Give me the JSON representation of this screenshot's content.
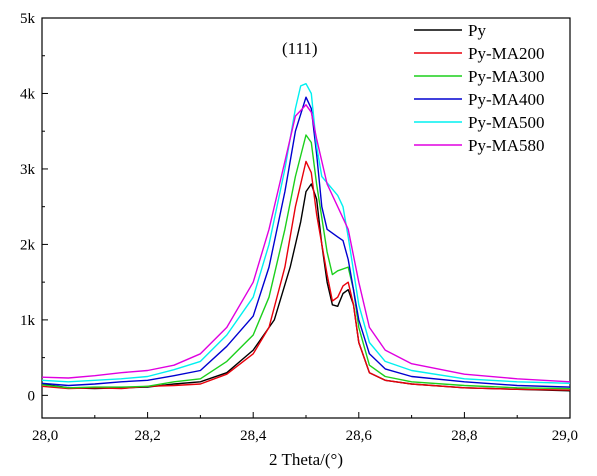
{
  "chart_data": {
    "type": "line",
    "title": "",
    "annotation": "(111)",
    "xlabel": "2 Theta/(°)",
    "ylabel": "",
    "xlim": [
      28.0,
      29.0
    ],
    "ylim": [
      -300,
      5000
    ],
    "x_ticks": [
      "28,0",
      "28,2",
      "28,4",
      "28,6",
      "28,8",
      "29,0"
    ],
    "y_ticks": [
      "0",
      "1k",
      "2k",
      "3k",
      "4k",
      "5k"
    ],
    "legend_position": "top-right",
    "grid": false,
    "series": [
      {
        "name": "Py",
        "color": "#000000",
        "points": [
          [
            28.0,
            150
          ],
          [
            28.05,
            100
          ],
          [
            28.1,
            90
          ],
          [
            28.15,
            100
          ],
          [
            28.2,
            110
          ],
          [
            28.25,
            150
          ],
          [
            28.3,
            180
          ],
          [
            28.35,
            300
          ],
          [
            28.4,
            600
          ],
          [
            28.44,
            1000
          ],
          [
            28.47,
            1700
          ],
          [
            28.49,
            2300
          ],
          [
            28.5,
            2700
          ],
          [
            28.51,
            2800
          ],
          [
            28.52,
            2600
          ],
          [
            28.53,
            2000
          ],
          [
            28.54,
            1500
          ],
          [
            28.55,
            1200
          ],
          [
            28.56,
            1180
          ],
          [
            28.57,
            1350
          ],
          [
            28.58,
            1400
          ],
          [
            28.59,
            1200
          ],
          [
            28.6,
            700
          ],
          [
            28.62,
            300
          ],
          [
            28.65,
            200
          ],
          [
            28.7,
            150
          ],
          [
            28.8,
            100
          ],
          [
            28.9,
            80
          ],
          [
            29.0,
            60
          ]
        ]
      },
      {
        "name": "Py-MA200",
        "color": "#e8000b",
        "points": [
          [
            28.0,
            120
          ],
          [
            28.05,
            90
          ],
          [
            28.1,
            100
          ],
          [
            28.15,
            90
          ],
          [
            28.2,
            120
          ],
          [
            28.25,
            130
          ],
          [
            28.3,
            150
          ],
          [
            28.35,
            280
          ],
          [
            28.4,
            550
          ],
          [
            28.43,
            900
          ],
          [
            28.46,
            1700
          ],
          [
            28.48,
            2500
          ],
          [
            28.5,
            3100
          ],
          [
            28.51,
            2950
          ],
          [
            28.52,
            2400
          ],
          [
            28.54,
            1600
          ],
          [
            28.55,
            1250
          ],
          [
            28.56,
            1300
          ],
          [
            28.57,
            1450
          ],
          [
            28.58,
            1500
          ],
          [
            28.59,
            1200
          ],
          [
            28.6,
            700
          ],
          [
            28.62,
            300
          ],
          [
            28.65,
            200
          ],
          [
            28.7,
            150
          ],
          [
            28.8,
            100
          ],
          [
            28.9,
            80
          ],
          [
            29.0,
            70
          ]
        ]
      },
      {
        "name": "Py-MA300",
        "color": "#1ccf1c",
        "points": [
          [
            28.0,
            140
          ],
          [
            28.05,
            100
          ],
          [
            28.1,
            110
          ],
          [
            28.15,
            110
          ],
          [
            28.2,
            120
          ],
          [
            28.25,
            180
          ],
          [
            28.3,
            220
          ],
          [
            28.35,
            450
          ],
          [
            28.4,
            800
          ],
          [
            28.43,
            1300
          ],
          [
            28.46,
            2200
          ],
          [
            28.48,
            2900
          ],
          [
            28.5,
            3450
          ],
          [
            28.51,
            3350
          ],
          [
            28.52,
            2800
          ],
          [
            28.54,
            1900
          ],
          [
            28.55,
            1600
          ],
          [
            28.56,
            1650
          ],
          [
            28.58,
            1700
          ],
          [
            28.59,
            1400
          ],
          [
            28.6,
            900
          ],
          [
            28.62,
            400
          ],
          [
            28.65,
            250
          ],
          [
            28.7,
            180
          ],
          [
            28.8,
            130
          ],
          [
            28.9,
            100
          ],
          [
            29.0,
            90
          ]
        ]
      },
      {
        "name": "Py-MA400",
        "color": "#0000d0",
        "points": [
          [
            28.0,
            160
          ],
          [
            28.05,
            130
          ],
          [
            28.1,
            150
          ],
          [
            28.15,
            180
          ],
          [
            28.2,
            200
          ],
          [
            28.25,
            260
          ],
          [
            28.3,
            330
          ],
          [
            28.35,
            650
          ],
          [
            28.4,
            1050
          ],
          [
            28.43,
            1700
          ],
          [
            28.46,
            2700
          ],
          [
            28.48,
            3500
          ],
          [
            28.5,
            3950
          ],
          [
            28.51,
            3800
          ],
          [
            28.52,
            3200
          ],
          [
            28.53,
            2500
          ],
          [
            28.54,
            2200
          ],
          [
            28.56,
            2100
          ],
          [
            28.57,
            2050
          ],
          [
            28.58,
            1800
          ],
          [
            28.6,
            1000
          ],
          [
            28.62,
            550
          ],
          [
            28.65,
            350
          ],
          [
            28.7,
            250
          ],
          [
            28.8,
            180
          ],
          [
            28.9,
            130
          ],
          [
            29.0,
            110
          ]
        ]
      },
      {
        "name": "Py-MA500",
        "color": "#00f0f0",
        "points": [
          [
            28.0,
            200
          ],
          [
            28.05,
            180
          ],
          [
            28.1,
            200
          ],
          [
            28.15,
            220
          ],
          [
            28.2,
            250
          ],
          [
            28.25,
            340
          ],
          [
            28.3,
            450
          ],
          [
            28.35,
            800
          ],
          [
            28.4,
            1300
          ],
          [
            28.43,
            2000
          ],
          [
            28.46,
            3000
          ],
          [
            28.48,
            3800
          ],
          [
            28.49,
            4100
          ],
          [
            28.5,
            4130
          ],
          [
            28.51,
            4000
          ],
          [
            28.52,
            3300
          ],
          [
            28.53,
            2900
          ],
          [
            28.56,
            2650
          ],
          [
            28.57,
            2500
          ],
          [
            28.58,
            2100
          ],
          [
            28.6,
            1200
          ],
          [
            28.62,
            700
          ],
          [
            28.65,
            450
          ],
          [
            28.7,
            330
          ],
          [
            28.8,
            220
          ],
          [
            28.9,
            180
          ],
          [
            29.0,
            160
          ]
        ]
      },
      {
        "name": "Py-MA580",
        "color": "#e000e0",
        "points": [
          [
            28.0,
            240
          ],
          [
            28.05,
            230
          ],
          [
            28.1,
            260
          ],
          [
            28.15,
            300
          ],
          [
            28.2,
            330
          ],
          [
            28.25,
            400
          ],
          [
            28.3,
            550
          ],
          [
            28.35,
            900
          ],
          [
            28.4,
            1500
          ],
          [
            28.43,
            2200
          ],
          [
            28.46,
            3100
          ],
          [
            28.48,
            3700
          ],
          [
            28.5,
            3850
          ],
          [
            28.51,
            3750
          ],
          [
            28.52,
            3400
          ],
          [
            28.54,
            2800
          ],
          [
            28.56,
            2500
          ],
          [
            28.58,
            2200
          ],
          [
            28.6,
            1500
          ],
          [
            28.62,
            900
          ],
          [
            28.65,
            600
          ],
          [
            28.7,
            420
          ],
          [
            28.8,
            280
          ],
          [
            28.9,
            220
          ],
          [
            29.0,
            180
          ]
        ]
      }
    ]
  }
}
